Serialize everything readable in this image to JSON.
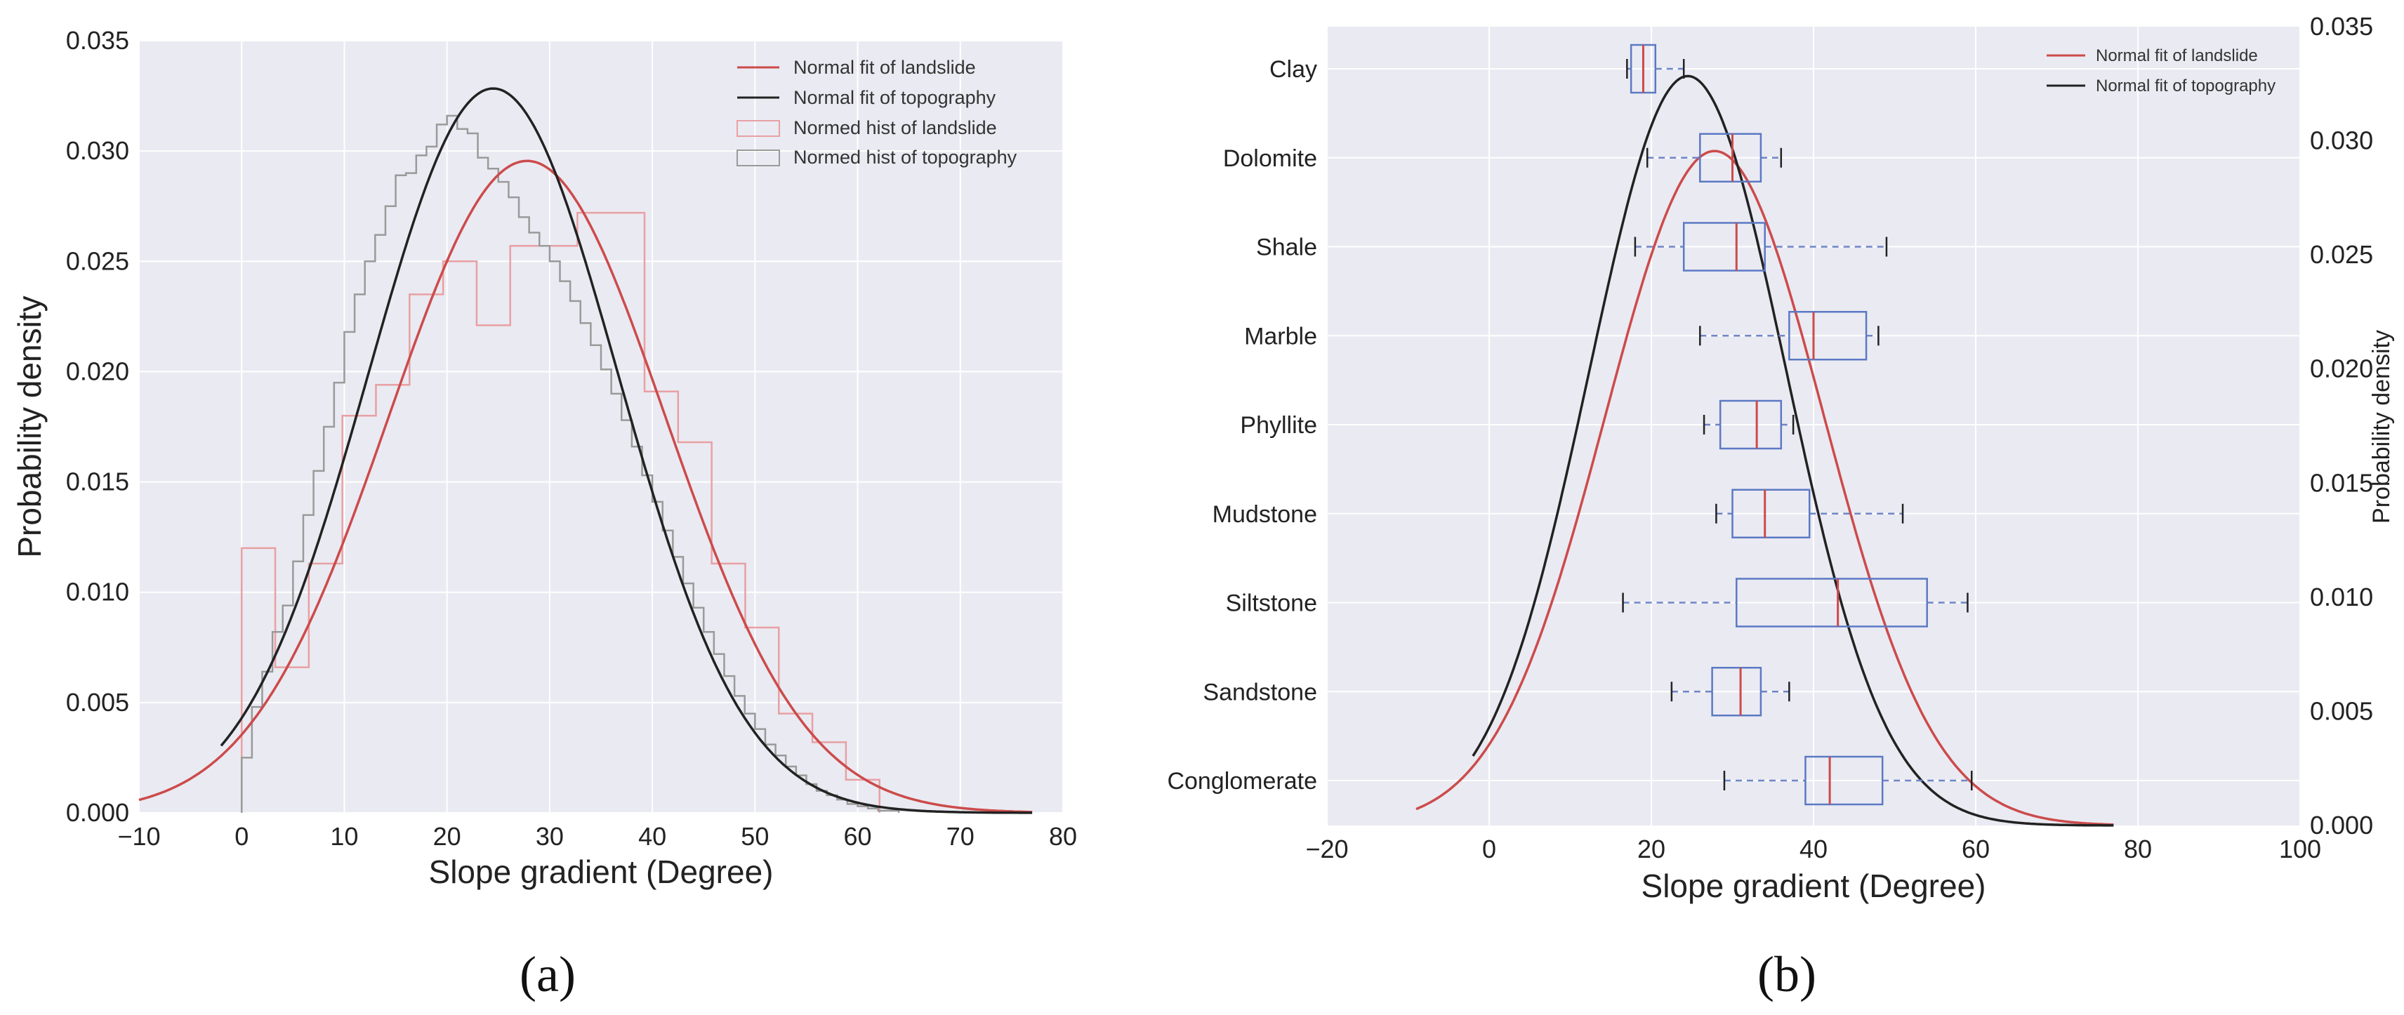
{
  "chart_data": [
    {
      "panel_label": "(a)",
      "type": "line",
      "xlabel": "Slope gradient (Degree)",
      "ylabel": "Probability density",
      "xlim": [
        -10,
        80
      ],
      "ylim": [
        0,
        0.035
      ],
      "xticks": [
        "−10",
        "0",
        "10",
        "20",
        "30",
        "40",
        "50",
        "60",
        "70",
        "80"
      ],
      "yticks": [
        "0.000",
        "0.005",
        "0.010",
        "0.015",
        "0.020",
        "0.025",
        "0.030",
        "0.035"
      ],
      "grid": true,
      "legend_position": "top-right",
      "series": [
        {
          "name": "Normal fit of landslide",
          "kind": "normal-curve",
          "mean": 27.8,
          "sd": 13.5,
          "x_range": [
            -10,
            77
          ],
          "color": "#cc4b4b"
        },
        {
          "name": "Normal fit of topography",
          "kind": "normal-curve",
          "mean": 24.5,
          "sd": 12.15,
          "x_range": [
            -2,
            77
          ],
          "color": "#222222"
        },
        {
          "name": "Normed hist of landslide",
          "kind": "step-histogram",
          "color": "#e8a0a3",
          "edges": [
            0,
            3.27,
            6.54,
            9.81,
            13.08,
            16.35,
            19.62,
            22.89,
            26.16,
            29.43,
            32.7,
            35.97,
            39.24,
            42.51,
            45.78,
            49.05,
            52.32,
            55.59,
            58.86,
            62.13
          ],
          "values": [
            0.012,
            0.0066,
            0.0113,
            0.018,
            0.0194,
            0.0235,
            0.025,
            0.0221,
            0.0257,
            0.0257,
            0.0272,
            0.0272,
            0.0191,
            0.0168,
            0.0113,
            0.0084,
            0.0045,
            0.0032,
            0.0015
          ]
        },
        {
          "name": "Normed hist of topography",
          "kind": "step-histogram",
          "color": "#9a9a9a",
          "edges": [
            0,
            1,
            2,
            3,
            4,
            5,
            6,
            7,
            8,
            9,
            10,
            11,
            12,
            13,
            14,
            15,
            16,
            17,
            18,
            19,
            20,
            21,
            22,
            23,
            24,
            25,
            26,
            27,
            28,
            29,
            30,
            31,
            32,
            33,
            34,
            35,
            36,
            37,
            38,
            39,
            40,
            41,
            42,
            43,
            44,
            45,
            46,
            47,
            48,
            49,
            50,
            51,
            52,
            53,
            54,
            55,
            56,
            57,
            58,
            59,
            60,
            61,
            62,
            63,
            64
          ],
          "values": [
            0.0025,
            0.0048,
            0.0064,
            0.0082,
            0.0094,
            0.0114,
            0.0135,
            0.0155,
            0.0175,
            0.0195,
            0.0218,
            0.0235,
            0.025,
            0.0262,
            0.0275,
            0.0289,
            0.029,
            0.0298,
            0.0302,
            0.0312,
            0.0316,
            0.031,
            0.0308,
            0.0297,
            0.0292,
            0.0286,
            0.0279,
            0.027,
            0.0263,
            0.0257,
            0.025,
            0.0241,
            0.0232,
            0.0222,
            0.0212,
            0.0201,
            0.019,
            0.0178,
            0.0166,
            0.0153,
            0.0141,
            0.0128,
            0.0116,
            0.0104,
            0.0093,
            0.0082,
            0.0072,
            0.0062,
            0.0053,
            0.0045,
            0.0038,
            0.0031,
            0.0026,
            0.0021,
            0.0017,
            0.0013,
            0.001,
            0.0008,
            0.0006,
            0.0004,
            0.0003,
            0.0002,
            0.0001,
            0.0001
          ]
        }
      ]
    },
    {
      "panel_label": "(b)",
      "type": "box",
      "xlabel": "Slope gradient (Degree)",
      "y2label": "Probability density",
      "xlim": [
        -20,
        100
      ],
      "y2lim": [
        0,
        0.035
      ],
      "xticks": [
        "−20",
        "0",
        "20",
        "40",
        "60",
        "80",
        "100"
      ],
      "y2ticks": [
        "0.000",
        "0.005",
        "0.010",
        "0.015",
        "0.020",
        "0.025",
        "0.030",
        "0.035"
      ],
      "grid": true,
      "legend_position": "top-right",
      "categories": [
        "Clay",
        "Dolomite",
        "Shale",
        "Marble",
        "Phyllite",
        "Mudstone",
        "Siltstone",
        "Sandstone",
        "Conglomerate"
      ],
      "boxes": [
        {
          "min": 17,
          "q1": 17.5,
          "median": 19,
          "q3": 20.5,
          "max": 24
        },
        {
          "min": 19.5,
          "q1": 26,
          "median": 30,
          "q3": 33.5,
          "max": 36
        },
        {
          "min": 18,
          "q1": 24,
          "median": 30.5,
          "q3": 34,
          "max": 49
        },
        {
          "min": 26,
          "q1": 37,
          "median": 40,
          "q3": 46.5,
          "max": 48
        },
        {
          "min": 26.5,
          "q1": 28.5,
          "median": 33,
          "q3": 36,
          "max": 37.5
        },
        {
          "min": 28,
          "q1": 30,
          "median": 34,
          "q3": 39.5,
          "max": 51
        },
        {
          "min": 16.5,
          "q1": 30.5,
          "median": 43,
          "q3": 54,
          "max": 59
        },
        {
          "min": 22.5,
          "q1": 27.5,
          "median": 31,
          "q3": 33.5,
          "max": 37
        },
        {
          "min": 29,
          "q1": 39,
          "median": 42,
          "q3": 48.5,
          "max": 59.5
        }
      ],
      "series": [
        {
          "name": "Normal fit of landslide",
          "kind": "normal-curve",
          "mean": 27.8,
          "sd": 13.5,
          "x_range": [
            -9,
            77
          ],
          "color": "#cc4b4b"
        },
        {
          "name": "Normal fit of topography",
          "kind": "normal-curve",
          "mean": 24.5,
          "sd": 12.15,
          "x_range": [
            -2,
            77
          ],
          "color": "#222222"
        }
      ]
    }
  ]
}
